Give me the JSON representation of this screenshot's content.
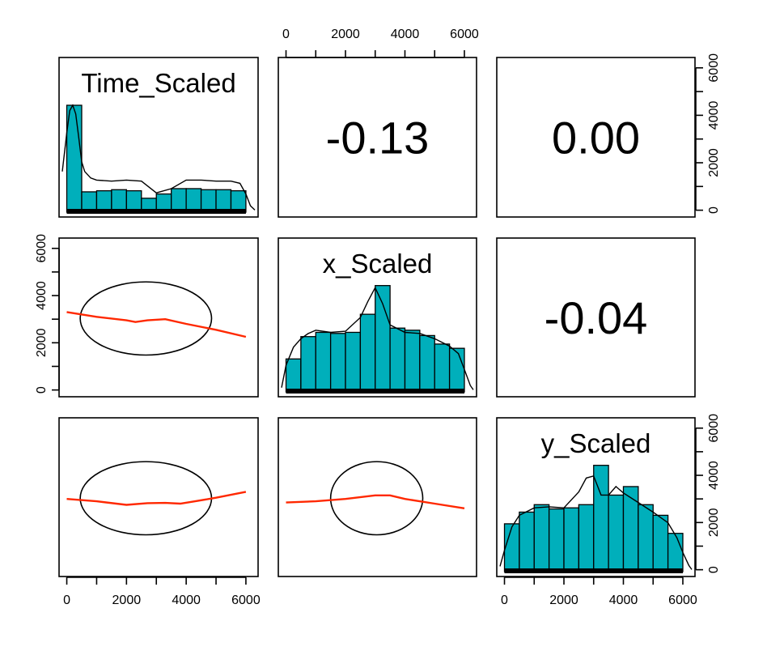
{
  "chart_data": {
    "type": "scatter-matrix",
    "variables": [
      "Time_Scaled",
      "x_Scaled",
      "y_Scaled"
    ],
    "axis_range": [
      -150,
      6300
    ],
    "ticks": [
      0,
      1000,
      2000,
      3000,
      4000,
      5000,
      6000
    ],
    "tick_labels": [
      "0",
      "2000",
      "4000",
      "6000"
    ],
    "correlations": [
      {
        "row": 0,
        "col": 1,
        "label": "-0.13"
      },
      {
        "row": 0,
        "col": 2,
        "label": "0.00"
      },
      {
        "row": 1,
        "col": 2,
        "label": "-0.04"
      }
    ],
    "histograms": [
      {
        "variable": "Time_Scaled",
        "breaks": [
          0,
          500,
          1000,
          1500,
          2000,
          2500,
          3000,
          3500,
          4000,
          4500,
          5000,
          5500,
          6000
        ],
        "density": [
          1.0,
          0.19,
          0.2,
          0.21,
          0.2,
          0.13,
          0.17,
          0.22,
          0.22,
          0.21,
          0.21,
          0.2
        ],
        "curve_x": [
          -150,
          0,
          100,
          200,
          300,
          400,
          500,
          600,
          800,
          1000,
          1500,
          2000,
          2500,
          3000,
          3500,
          4000,
          4500,
          5000,
          5500,
          5800,
          6000,
          6150,
          6300
        ],
        "curve_y": [
          0.38,
          0.74,
          0.95,
          1.0,
          0.92,
          0.7,
          0.47,
          0.38,
          0.32,
          0.3,
          0.29,
          0.3,
          0.29,
          0.18,
          0.22,
          0.3,
          0.3,
          0.29,
          0.29,
          0.27,
          0.17,
          0.06,
          0.02
        ]
      },
      {
        "variable": "x_Scaled",
        "breaks": [
          0,
          500,
          1000,
          1500,
          2000,
          2500,
          3000,
          3500,
          4000,
          4500,
          5000,
          5500,
          6000
        ],
        "density": [
          0.31,
          0.52,
          0.56,
          0.55,
          0.56,
          0.73,
          1.0,
          0.6,
          0.58,
          0.53,
          0.45,
          0.41
        ],
        "curve_x": [
          -150,
          0,
          250,
          500,
          750,
          1000,
          1500,
          2000,
          2500,
          2750,
          3000,
          3250,
          3500,
          4000,
          4500,
          5000,
          5500,
          5800,
          6000,
          6200,
          6300
        ],
        "curve_y": [
          0.04,
          0.25,
          0.42,
          0.5,
          0.55,
          0.58,
          0.56,
          0.57,
          0.7,
          0.85,
          0.98,
          0.83,
          0.63,
          0.56,
          0.55,
          0.5,
          0.43,
          0.36,
          0.21,
          0.06,
          0.02
        ]
      },
      {
        "variable": "y_Scaled",
        "breaks": [
          0,
          500,
          1000,
          1500,
          2000,
          2500,
          3000,
          3500,
          4000,
          4500,
          5000,
          5500,
          6000
        ],
        "density": [
          0.45,
          0.56,
          0.63,
          0.59,
          0.6,
          0.63,
          1.0,
          0.72,
          0.8,
          0.63,
          0.53,
          0.36
        ],
        "curve_x": [
          -150,
          0,
          250,
          500,
          1000,
          1500,
          2000,
          2500,
          2750,
          3000,
          3250,
          3500,
          3750,
          4000,
          4500,
          5000,
          5500,
          5800,
          6000,
          6200,
          6300
        ],
        "curve_y": [
          0.05,
          0.2,
          0.42,
          0.53,
          0.6,
          0.61,
          0.6,
          0.75,
          0.88,
          0.9,
          0.72,
          0.72,
          0.8,
          0.74,
          0.65,
          0.56,
          0.46,
          0.32,
          0.18,
          0.06,
          0.02
        ]
      }
    ],
    "scatter_panels": [
      {
        "row": 1,
        "col": 0,
        "ellipse": {
          "cx": 2650,
          "cy": 3030,
          "rx": 2200,
          "ry": 1550
        },
        "loess_x": [
          0,
          1000,
          2000,
          2300,
          2700,
          3300,
          4000,
          5000,
          6000
        ],
        "loess_y": [
          3300,
          3100,
          2950,
          2880,
          2950,
          3000,
          2800,
          2550,
          2250
        ]
      },
      {
        "row": 2,
        "col": 0,
        "ellipse": {
          "cx": 2650,
          "cy": 3030,
          "rx": 2200,
          "ry": 1550
        },
        "loess_x": [
          0,
          1000,
          2000,
          2700,
          3300,
          3800,
          4300,
          5000,
          6000
        ],
        "loess_y": [
          3000,
          2900,
          2750,
          2820,
          2830,
          2800,
          2900,
          3050,
          3300
        ]
      },
      {
        "row": 2,
        "col": 1,
        "ellipse": {
          "cx": 3050,
          "cy": 3030,
          "rx": 1550,
          "ry": 1550
        },
        "loess_x": [
          0,
          1000,
          2000,
          3000,
          3500,
          4000,
          5000,
          6000
        ],
        "loess_y": [
          2850,
          2900,
          3000,
          3150,
          3150,
          3000,
          2800,
          2600
        ]
      }
    ],
    "colors": {
      "bar_fill": "#00AFBB",
      "loess": "#FF2800",
      "rug": "#000000"
    }
  }
}
